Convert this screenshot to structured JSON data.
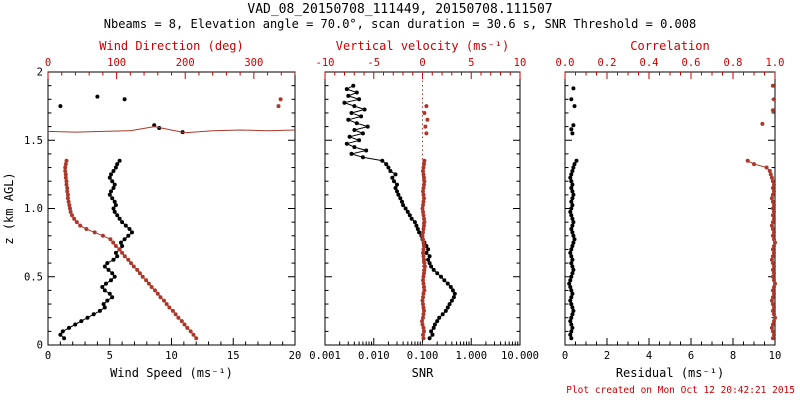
{
  "header": {
    "title": "VAD_08_20150708_111449, 20150708.111507",
    "subtitle": "Nbeams = 8, Elevation angle = 70.0°, scan duration = 30.6 s, SNR Threshold = 0.008"
  },
  "footer": {
    "credit": "Plot created on Mon Oct 12 20:42:21 2015"
  },
  "colors": {
    "background": "#ffffff",
    "black": "#000000",
    "axis_red": "#cc0000",
    "data_red": "#ad382a"
  },
  "chart_data": {
    "type": "scatter",
    "yaxis": {
      "label": "z (km AGL)",
      "min": 0,
      "max": 2,
      "tick_vals": [
        0,
        0.5,
        1.0,
        1.5,
        2.0
      ],
      "tick_labels": [
        "0",
        "0.5",
        "1.0",
        "1.5",
        "2"
      ],
      "minor_step": 0.1
    },
    "panels": [
      {
        "name": "wind-panel",
        "bottom_axis": {
          "label": "Wind Speed (ms⁻¹)",
          "min": 0,
          "max": 20,
          "scale": "linear",
          "tick_vals": [
            0,
            5,
            10,
            15,
            20
          ],
          "tick_labels": [
            "0",
            "5",
            "10",
            "15",
            "20"
          ],
          "minor_step": 1
        },
        "top_axis": {
          "label": "Wind Direction (deg)",
          "min": 0,
          "max": 360,
          "scale": "linear",
          "tick_vals": [
            0,
            100,
            200,
            300
          ],
          "tick_labels": [
            "0",
            "100",
            "200",
            "300"
          ],
          "minor_step": 20
        },
        "z": [
          0.05,
          0.075,
          0.1,
          0.125,
          0.15,
          0.175,
          0.2,
          0.225,
          0.25,
          0.275,
          0.3,
          0.325,
          0.35,
          0.375,
          0.4,
          0.425,
          0.45,
          0.475,
          0.5,
          0.525,
          0.55,
          0.575,
          0.6,
          0.625,
          0.65,
          0.675,
          0.7,
          0.725,
          0.75,
          0.775,
          0.8,
          0.825,
          0.85,
          0.875,
          0.9,
          0.925,
          0.95,
          0.975,
          1.0,
          1.025,
          1.05,
          1.075,
          1.1,
          1.125,
          1.15,
          1.175,
          1.2,
          1.225,
          1.25,
          1.275,
          1.3,
          1.325,
          1.35
        ],
        "series": [
          {
            "name": "wind-speed-profile",
            "axis": "bottom",
            "color": "black",
            "line": true,
            "dots": true,
            "v": [
              1.3,
              1.0,
              1.2,
              1.7,
              2.2,
              2.7,
              3.2,
              3.7,
              4.2,
              4.6,
              4.5,
              4.8,
              5.2,
              5.0,
              4.6,
              4.4,
              4.7,
              5.1,
              5.4,
              5.2,
              4.9,
              4.6,
              4.8,
              5.3,
              5.6,
              5.5,
              5.8,
              6.0,
              5.9,
              6.2,
              6.5,
              6.8,
              6.6,
              6.3,
              6.0,
              5.8,
              5.6,
              5.4,
              5.3,
              5.5,
              5.4,
              5.2,
              5.0,
              5.1,
              5.3,
              5.4,
              5.2,
              5.0,
              5.1,
              5.3,
              5.5,
              5.6,
              5.8
            ]
          },
          {
            "name": "wind-speed-outliers",
            "axis": "bottom",
            "color": "black",
            "line": false,
            "dots": true,
            "z": [
              1.56,
              1.59,
              1.61,
              1.75,
              1.8,
              1.82
            ],
            "v": [
              10.9,
              9.0,
              8.6,
              1.0,
              6.2,
              4.0
            ]
          },
          {
            "name": "wind-direction-profile",
            "axis": "top",
            "color": "red",
            "line": true,
            "dots": true,
            "v": [
              216,
              212,
              208,
              203,
              199,
              195,
              190,
              186,
              182,
              177,
              173,
              169,
              164,
              160,
              156,
              151,
              147,
              143,
              138,
              134,
              130,
              125,
              121,
              117,
              112,
              108,
              104,
              99,
              95,
              91,
              80,
              68,
              56,
              47,
              42,
              38,
              35,
              33,
              32,
              31,
              30,
              29,
              29,
              28,
              28,
              27,
              27,
              26,
              26,
              25,
              25,
              26,
              27
            ]
          },
          {
            "name": "wind-direction-upper-line",
            "axis": "top",
            "color": "red",
            "line": true,
            "dots": false,
            "z": [
              1.565,
              1.56,
              1.565,
              1.57,
              1.6,
              1.555,
              1.57,
              1.575,
              1.57,
              1.575
            ],
            "v": [
              0,
              40,
              80,
              120,
              155,
              200,
              240,
              280,
              320,
              360
            ]
          },
          {
            "name": "wind-direction-outliers",
            "axis": "top",
            "color": "red",
            "line": false,
            "dots": true,
            "z": [
              1.75,
              1.8
            ],
            "v": [
              336,
              339
            ]
          }
        ]
      },
      {
        "name": "snr-panel",
        "bottom_axis": {
          "label": "SNR",
          "min": 0.001,
          "max": 10,
          "scale": "log",
          "tick_vals": [
            0.001,
            0.01,
            0.1,
            1,
            10
          ],
          "tick_labels": [
            "0.001",
            "0.010",
            "0.100",
            "1.000",
            "10.000"
          ]
        },
        "top_axis": {
          "label": "Vertical velocity (ms⁻¹)",
          "min": -10,
          "max": 10,
          "scale": "linear",
          "tick_vals": [
            -10,
            -5,
            0,
            5,
            10
          ],
          "tick_labels": [
            "-10",
            "-5",
            "0",
            "5",
            "10"
          ],
          "minor_step": 1
        },
        "refline_top": {
          "value": 0
        },
        "z": [
          0.05,
          0.075,
          0.1,
          0.125,
          0.15,
          0.175,
          0.2,
          0.225,
          0.25,
          0.275,
          0.3,
          0.325,
          0.35,
          0.375,
          0.4,
          0.425,
          0.45,
          0.475,
          0.5,
          0.525,
          0.55,
          0.575,
          0.6,
          0.625,
          0.65,
          0.675,
          0.7,
          0.725,
          0.75,
          0.775,
          0.8,
          0.825,
          0.85,
          0.875,
          0.9,
          0.925,
          0.95,
          0.975,
          1.0,
          1.025,
          1.05,
          1.075,
          1.1,
          1.125,
          1.15,
          1.175,
          1.2,
          1.225,
          1.25,
          1.275,
          1.3,
          1.325,
          1.35
        ],
        "series": [
          {
            "name": "snr-profile",
            "axis": "bottom",
            "color": "black",
            "line": true,
            "dots": true,
            "z": [
              0.05,
              0.075,
              0.1,
              0.125,
              0.15,
              0.175,
              0.2,
              0.225,
              0.25,
              0.275,
              0.3,
              0.325,
              0.35,
              0.375,
              0.4,
              0.425,
              0.45,
              0.475,
              0.5,
              0.525,
              0.55,
              0.575,
              0.6,
              0.625,
              0.65,
              0.675,
              0.7,
              0.725,
              0.75,
              0.775,
              0.8,
              0.825,
              0.85,
              0.875,
              0.9,
              0.925,
              0.95,
              0.975,
              1.0,
              1.025,
              1.05,
              1.075,
              1.1,
              1.125,
              1.15,
              1.175,
              1.2,
              1.225,
              1.25,
              1.275,
              1.3,
              1.325,
              1.35,
              1.375,
              1.4,
              1.425,
              1.45,
              1.475,
              1.5,
              1.525,
              1.55,
              1.575,
              1.6,
              1.625,
              1.65,
              1.675,
              1.7,
              1.725,
              1.75,
              1.775,
              1.8,
              1.825,
              1.85,
              1.875,
              1.9
            ],
            "v": [
              0.14,
              0.16,
              0.15,
              0.17,
              0.18,
              0.2,
              0.22,
              0.26,
              0.3,
              0.33,
              0.36,
              0.4,
              0.44,
              0.46,
              0.42,
              0.38,
              0.33,
              0.28,
              0.24,
              0.2,
              0.17,
              0.15,
              0.14,
              0.13,
              0.14,
              0.12,
              0.13,
              0.12,
              0.11,
              0.1,
              0.095,
              0.085,
              0.08,
              0.075,
              0.07,
              0.06,
              0.055,
              0.05,
              0.045,
              0.04,
              0.038,
              0.035,
              0.032,
              0.03,
              0.028,
              0.03,
              0.026,
              0.024,
              0.028,
              0.022,
              0.02,
              0.018,
              0.015,
              0.006,
              0.0035,
              0.007,
              0.004,
              0.0028,
              0.005,
              0.0032,
              0.006,
              0.004,
              0.0075,
              0.0045,
              0.003,
              0.0055,
              0.0035,
              0.0065,
              0.004,
              0.0025,
              0.005,
              0.003,
              0.0045,
              0.0028,
              0.0038
            ]
          },
          {
            "name": "vertical-velocity-profile",
            "axis": "top",
            "color": "red",
            "line": true,
            "dots": true,
            "v": [
              0.1,
              0.05,
              0.15,
              0.1,
              0.0,
              -0.05,
              0.05,
              0.1,
              0.15,
              0.1,
              0.05,
              0.0,
              0.05,
              0.1,
              0.2,
              0.15,
              0.1,
              0.05,
              0.1,
              0.15,
              0.2,
              0.25,
              0.2,
              0.15,
              0.1,
              0.05,
              0.1,
              0.15,
              0.1,
              0.05,
              0.0,
              0.05,
              0.1,
              0.15,
              0.2,
              0.15,
              0.1,
              0.05,
              0.0,
              0.05,
              0.1,
              0.15,
              0.1,
              0.05,
              0.1,
              0.15,
              0.2,
              0.15,
              0.1,
              0.05,
              0.1,
              0.15,
              0.2
            ]
          },
          {
            "name": "vertical-velocity-outliers",
            "axis": "top",
            "color": "red",
            "line": false,
            "dots": true,
            "z": [
              1.55,
              1.6,
              1.65,
              1.7,
              1.75
            ],
            "v": [
              0.4,
              0.3,
              0.5,
              0.2,
              0.4
            ]
          }
        ]
      },
      {
        "name": "residual-panel",
        "bottom_axis": {
          "label": "Residual (ms⁻¹)",
          "min": 0,
          "max": 10,
          "scale": "linear",
          "tick_vals": [
            0,
            2,
            4,
            6,
            8,
            10
          ],
          "tick_labels": [
            "0",
            "2",
            "4",
            "6",
            "8",
            "10"
          ],
          "minor_step": 0.5
        },
        "top_axis": {
          "label": "Correlation",
          "min": 0,
          "max": 1,
          "scale": "linear",
          "tick_vals": [
            0,
            0.2,
            0.4,
            0.6,
            0.8,
            1.0
          ],
          "tick_labels": [
            "0.0",
            "0.2",
            "0.4",
            "0.6",
            "0.8",
            "1.0"
          ],
          "minor_step": 0.05
        },
        "z": [
          0.05,
          0.075,
          0.1,
          0.125,
          0.15,
          0.175,
          0.2,
          0.225,
          0.25,
          0.275,
          0.3,
          0.325,
          0.35,
          0.375,
          0.4,
          0.425,
          0.45,
          0.475,
          0.5,
          0.525,
          0.55,
          0.575,
          0.6,
          0.625,
          0.65,
          0.675,
          0.7,
          0.725,
          0.75,
          0.775,
          0.8,
          0.825,
          0.85,
          0.875,
          0.9,
          0.925,
          0.95,
          0.975,
          1.0,
          1.025,
          1.05,
          1.075,
          1.1,
          1.125,
          1.15,
          1.175,
          1.2,
          1.225,
          1.25,
          1.275,
          1.3,
          1.325,
          1.35
        ],
        "series": [
          {
            "name": "residual-profile",
            "axis": "bottom",
            "color": "black",
            "line": true,
            "dots": true,
            "v": [
              0.3,
              0.25,
              0.3,
              0.35,
              0.3,
              0.25,
              0.3,
              0.35,
              0.4,
              0.35,
              0.3,
              0.25,
              0.3,
              0.35,
              0.3,
              0.25,
              0.2,
              0.25,
              0.3,
              0.35,
              0.4,
              0.35,
              0.3,
              0.35,
              0.3,
              0.25,
              0.3,
              0.35,
              0.4,
              0.45,
              0.4,
              0.35,
              0.3,
              0.35,
              0.4,
              0.35,
              0.3,
              0.25,
              0.3,
              0.35,
              0.3,
              0.35,
              0.4,
              0.35,
              0.3,
              0.35,
              0.3,
              0.25,
              0.3,
              0.35,
              0.4,
              0.45,
              0.55
            ]
          },
          {
            "name": "residual-outliers",
            "axis": "bottom",
            "color": "black",
            "line": false,
            "dots": true,
            "z": [
              1.55,
              1.58,
              1.61,
              1.75,
              1.8,
              1.88
            ],
            "v": [
              0.35,
              0.3,
              0.4,
              0.45,
              0.3,
              0.4
            ]
          },
          {
            "name": "correlation-profile",
            "axis": "top",
            "color": "red",
            "line": true,
            "dots": true,
            "v": [
              0.99,
              0.995,
              0.99,
              0.985,
              0.99,
              0.995,
              1.0,
              0.995,
              0.99,
              0.995,
              0.99,
              0.985,
              0.99,
              0.995,
              0.99,
              0.995,
              1.0,
              0.995,
              0.99,
              0.995,
              0.99,
              0.995,
              0.99,
              0.985,
              0.99,
              0.995,
              0.99,
              0.995,
              1.0,
              0.995,
              0.99,
              0.995,
              0.99,
              0.985,
              0.99,
              0.995,
              0.99,
              0.995,
              0.99,
              0.995,
              0.99,
              0.985,
              0.99,
              0.995,
              0.99,
              0.995,
              0.99,
              0.985,
              0.98,
              0.975,
              0.96,
              0.9,
              0.87
            ]
          },
          {
            "name": "correlation-outliers",
            "axis": "top",
            "color": "red",
            "line": false,
            "dots": true,
            "z": [
              1.62,
              1.72,
              1.8,
              1.9
            ],
            "v": [
              0.94,
              0.99,
              0.995,
              0.99
            ]
          }
        ]
      }
    ]
  }
}
